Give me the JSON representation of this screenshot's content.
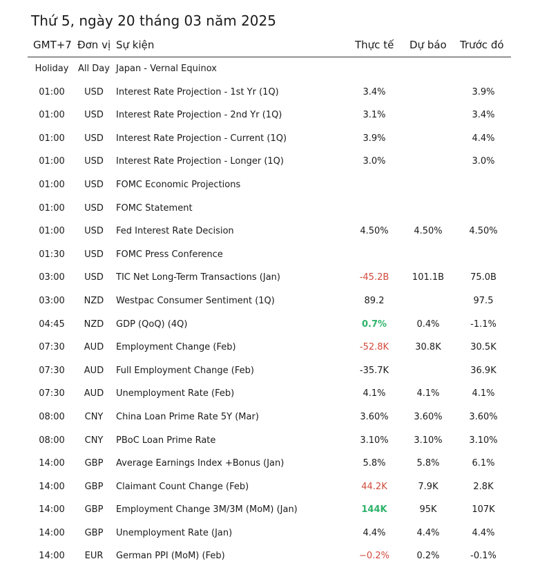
{
  "title": "Thứ 5, ngày 20 tháng 03 năm 2025",
  "headers": {
    "time": "GMT+7",
    "currency": "Đơn vị",
    "event": "Sự kiện",
    "actual": "Thực tế",
    "forecast": "Dự báo",
    "previous": "Trước đó"
  },
  "colors": {
    "negative": "#d0493b",
    "positive": "#2fb36b"
  },
  "rows": [
    {
      "time": "Holiday",
      "currency": "All Day",
      "event": "Japan - Vernal Equinox",
      "actual": "",
      "forecast": "",
      "previous": "",
      "status": ""
    },
    {
      "time": "01:00",
      "currency": "USD",
      "event": "Interest Rate Projection - 1st Yr (1Q)",
      "actual": "3.4%",
      "forecast": "",
      "previous": "3.9%",
      "status": ""
    },
    {
      "time": "01:00",
      "currency": "USD",
      "event": "Interest Rate Projection - 2nd Yr (1Q)",
      "actual": "3.1%",
      "forecast": "",
      "previous": "3.4%",
      "status": ""
    },
    {
      "time": "01:00",
      "currency": "USD",
      "event": "Interest Rate Projection - Current (1Q)",
      "actual": "3.9%",
      "forecast": "",
      "previous": "4.4%",
      "status": ""
    },
    {
      "time": "01:00",
      "currency": "USD",
      "event": "Interest Rate Projection - Longer (1Q)",
      "actual": "3.0%",
      "forecast": "",
      "previous": "3.0%",
      "status": ""
    },
    {
      "time": "01:00",
      "currency": "USD",
      "event": "FOMC Economic Projections",
      "actual": "",
      "forecast": "",
      "previous": "",
      "status": ""
    },
    {
      "time": "01:00",
      "currency": "USD",
      "event": "FOMC Statement",
      "actual": "",
      "forecast": "",
      "previous": "",
      "status": ""
    },
    {
      "time": "01:00",
      "currency": "USD",
      "event": "Fed Interest Rate Decision",
      "actual": "4.50%",
      "forecast": "4.50%",
      "previous": "4.50%",
      "status": ""
    },
    {
      "time": "01:30",
      "currency": "USD",
      "event": "FOMC Press Conference",
      "actual": "",
      "forecast": "",
      "previous": "",
      "status": ""
    },
    {
      "time": "03:00",
      "currency": "USD",
      "event": "TIC Net Long-Term Transactions (Jan)",
      "actual": "-45.2B",
      "forecast": "101.1B",
      "previous": "75.0B",
      "status": "neg"
    },
    {
      "time": "03:00",
      "currency": "NZD",
      "event": "Westpac Consumer Sentiment (1Q)",
      "actual": "89.2",
      "forecast": "",
      "previous": "97.5",
      "status": ""
    },
    {
      "time": "04:45",
      "currency": "NZD",
      "event": "GDP (QoQ) (4Q)",
      "actual": "0.7%",
      "forecast": "0.4%",
      "previous": "-1.1%",
      "status": "pos"
    },
    {
      "time": "07:30",
      "currency": "AUD",
      "event": "Employment Change (Feb)",
      "actual": "-52.8K",
      "forecast": "30.8K",
      "previous": "30.5K",
      "status": "neg"
    },
    {
      "time": "07:30",
      "currency": "AUD",
      "event": "Full Employment Change (Feb)",
      "actual": "-35.7K",
      "forecast": "",
      "previous": "36.9K",
      "status": ""
    },
    {
      "time": "07:30",
      "currency": "AUD",
      "event": "Unemployment Rate (Feb)",
      "actual": "4.1%",
      "forecast": "4.1%",
      "previous": "4.1%",
      "status": ""
    },
    {
      "time": "08:00",
      "currency": "CNY",
      "event": "China Loan Prime Rate 5Y (Mar)",
      "actual": "3.60%",
      "forecast": "3.60%",
      "previous": "3.60%",
      "status": ""
    },
    {
      "time": "08:00",
      "currency": "CNY",
      "event": "PBoC Loan Prime Rate",
      "actual": "3.10%",
      "forecast": "3.10%",
      "previous": "3.10%",
      "status": ""
    },
    {
      "time": "14:00",
      "currency": "GBP",
      "event": "Average Earnings Index +Bonus (Jan)",
      "actual": "5.8%",
      "forecast": "5.8%",
      "previous": "6.1%",
      "status": ""
    },
    {
      "time": "14:00",
      "currency": "GBP",
      "event": "Claimant Count Change (Feb)",
      "actual": "44.2K",
      "forecast": "7.9K",
      "previous": "2.8K",
      "status": "neg"
    },
    {
      "time": "14:00",
      "currency": "GBP",
      "event": "Employment Change 3M/3M (MoM) (Jan)",
      "actual": "144K",
      "forecast": "95K",
      "previous": "107K",
      "status": "pos"
    },
    {
      "time": "14:00",
      "currency": "GBP",
      "event": "Unemployment Rate (Jan)",
      "actual": "4.4%",
      "forecast": "4.4%",
      "previous": "4.4%",
      "status": ""
    },
    {
      "time": "14:00",
      "currency": "EUR",
      "event": "German PPI (MoM) (Feb)",
      "actual": "−0.2%",
      "forecast": "0.2%",
      "previous": "-0.1%",
      "status": "neg"
    }
  ]
}
